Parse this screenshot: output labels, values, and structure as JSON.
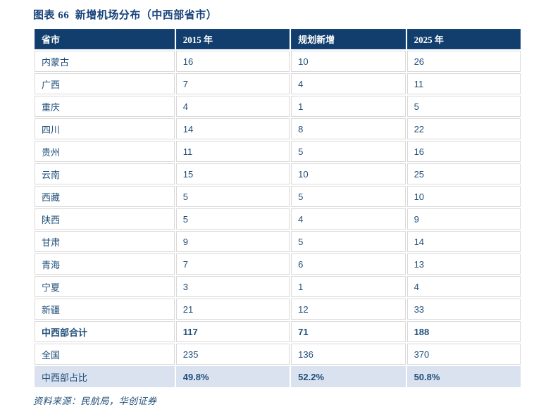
{
  "title": "图表 66  新增机场分布（中西部省市）",
  "table": {
    "columns": [
      "省市",
      "2015 年",
      "规划新增",
      "2025 年"
    ],
    "rows": [
      {
        "cells": [
          "内蒙古",
          "16",
          "10",
          "26"
        ],
        "style": "normal"
      },
      {
        "cells": [
          "广西",
          "7",
          "4",
          "11"
        ],
        "style": "normal"
      },
      {
        "cells": [
          "重庆",
          "4",
          "1",
          "5"
        ],
        "style": "normal"
      },
      {
        "cells": [
          "四川",
          "14",
          "8",
          "22"
        ],
        "style": "normal"
      },
      {
        "cells": [
          "贵州",
          "11",
          "5",
          "16"
        ],
        "style": "normal"
      },
      {
        "cells": [
          "云南",
          "15",
          "10",
          "25"
        ],
        "style": "normal"
      },
      {
        "cells": [
          "西藏",
          "5",
          "5",
          "10"
        ],
        "style": "normal"
      },
      {
        "cells": [
          "陕西",
          "5",
          "4",
          "9"
        ],
        "style": "normal"
      },
      {
        "cells": [
          "甘肃",
          "9",
          "5",
          "14"
        ],
        "style": "normal"
      },
      {
        "cells": [
          "青海",
          "7",
          "6",
          "13"
        ],
        "style": "normal"
      },
      {
        "cells": [
          "宁夏",
          "3",
          "1",
          "4"
        ],
        "style": "normal"
      },
      {
        "cells": [
          "新疆",
          "21",
          "12",
          "33"
        ],
        "style": "normal"
      },
      {
        "cells": [
          "中西部合计",
          "117",
          "71",
          "188"
        ],
        "style": "bold"
      },
      {
        "cells": [
          "全国",
          "235",
          "136",
          "370"
        ],
        "style": "normal"
      },
      {
        "cells": [
          "中西部占比",
          "49.8%",
          "52.2%",
          "50.8%"
        ],
        "style": "highlight"
      }
    ]
  },
  "source": "资料来源：民航局，华创证券",
  "colors": {
    "header_bg": "#123e6d",
    "header_text": "#ffffff",
    "body_text": "#1f4e79",
    "title_text": "#17427a",
    "highlight_bg": "#dbe2ef",
    "border": "#d9d9d9"
  }
}
